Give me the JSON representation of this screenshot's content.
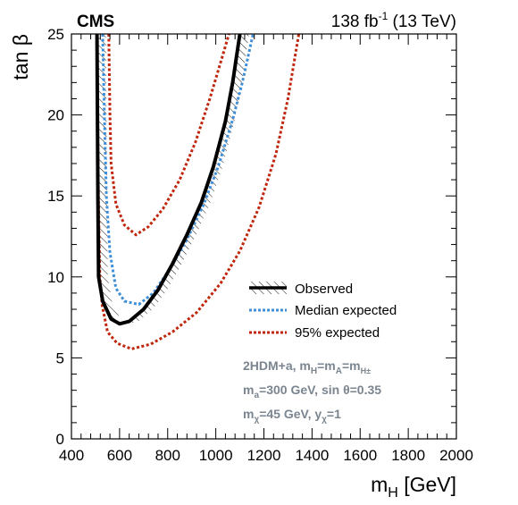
{
  "header": {
    "experiment": "CMS",
    "lumi_value": "138 fb",
    "lumi_exp": "-1",
    "energy": "(13 TeV)"
  },
  "axes": {
    "x_label": "m",
    "x_label_sub": "H",
    "x_label_unit": "[GeV]",
    "y_label": "tan β"
  },
  "notes": {
    "line1": {
      "a": "2HDM+a, m",
      "a_sub": "H",
      "b": "=m",
      "b_sub": "A",
      "c": "=m",
      "c_sub": "H±"
    },
    "line2": {
      "a": "m",
      "a_sub": "a",
      "b": "=300 GeV, sin θ=0.35"
    },
    "line3": {
      "a": "m",
      "a_sub": "χ",
      "b": "=45 GeV, y",
      "b_sub": "χ",
      "c": "=1"
    }
  },
  "colors": {
    "observed": "#000000",
    "median": "#3f8fd8",
    "ninetyfive": "#c0260b",
    "note": "#7a8590"
  },
  "chart_data": {
    "type": "line",
    "xlim": [
      400,
      2000
    ],
    "ylim": [
      0,
      25
    ],
    "x_ticks": [
      400,
      600,
      800,
      1000,
      1200,
      1400,
      1600,
      1800,
      2000
    ],
    "y_ticks": [
      0,
      5,
      10,
      15,
      20,
      25
    ],
    "grid": false,
    "legend_position": "middle-right",
    "series": [
      {
        "name": "Observed",
        "style": "solid-hatched",
        "points": [
          [
            506,
            25
          ],
          [
            508,
            20
          ],
          [
            510,
            15
          ],
          [
            513,
            10
          ],
          [
            530,
            8.5
          ],
          [
            565,
            7.4
          ],
          [
            600,
            7.1
          ],
          [
            640,
            7.25
          ],
          [
            700,
            8.0
          ],
          [
            760,
            9.2
          ],
          [
            820,
            10.8
          ],
          [
            880,
            12.6
          ],
          [
            940,
            14.6
          ],
          [
            990,
            16.8
          ],
          [
            1040,
            19.6
          ],
          [
            1070,
            22.0
          ],
          [
            1100,
            25
          ]
        ]
      },
      {
        "name": "Median expected",
        "style": "dotted",
        "points": [
          [
            530,
            25
          ],
          [
            537,
            20
          ],
          [
            545,
            15
          ],
          [
            560,
            11.5
          ],
          [
            585,
            9.3
          ],
          [
            620,
            8.5
          ],
          [
            680,
            8.3
          ],
          [
            740,
            9.0
          ],
          [
            810,
            10.5
          ],
          [
            880,
            12.3
          ],
          [
            950,
            14.5
          ],
          [
            1010,
            16.8
          ],
          [
            1070,
            19.7
          ],
          [
            1110,
            22.0
          ],
          [
            1155,
            25
          ]
        ]
      },
      {
        "name": "95% expected",
        "style": "dotted",
        "points": [
          [
            506,
            25
          ],
          [
            509,
            20
          ],
          [
            512,
            15
          ],
          [
            518,
            10
          ],
          [
            528,
            8.2
          ],
          [
            550,
            6.6
          ],
          [
            590,
            5.9
          ],
          [
            650,
            5.55
          ],
          [
            730,
            5.85
          ],
          [
            820,
            6.6
          ],
          [
            920,
            7.8
          ],
          [
            1020,
            9.6
          ],
          [
            1100,
            11.6
          ],
          [
            1180,
            14.3
          ],
          [
            1250,
            17.6
          ],
          [
            1300,
            21.0
          ],
          [
            1345,
            25
          ]
        ],
        "extra_branch": [
          [
            555,
            25
          ],
          [
            560,
            20
          ],
          [
            565,
            17
          ],
          [
            585,
            14.5
          ],
          [
            620,
            13.2
          ],
          [
            668,
            12.6
          ],
          [
            720,
            13.1
          ],
          [
            780,
            14.2
          ],
          [
            850,
            16.0
          ],
          [
            915,
            18.3
          ],
          [
            975,
            21.0
          ],
          [
            1025,
            23.5
          ],
          [
            1055,
            25
          ]
        ]
      }
    ]
  }
}
